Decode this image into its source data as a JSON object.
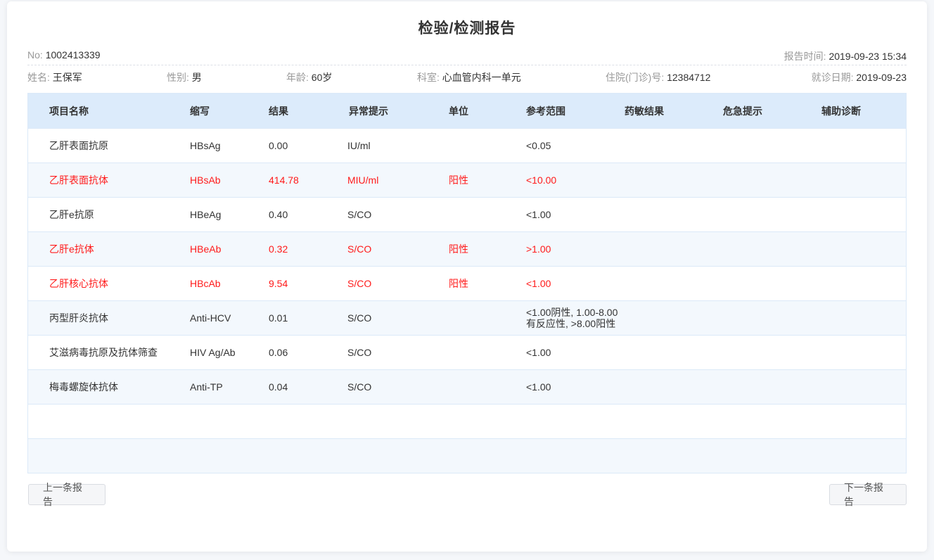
{
  "report": {
    "title": "检验/检测报告",
    "no_label": "No:",
    "no_value": "1002413339",
    "time_label": "报告时间:",
    "time_value": "2019-09-23 15:34"
  },
  "patient": {
    "name_label": "姓名:",
    "name_value": "王保军",
    "gender_label": "性别:",
    "gender_value": "男",
    "age_label": "年龄:",
    "age_value": "60岁",
    "dept_label": "科室:",
    "dept_value": "心血管内科一单元",
    "inpatient_label": "住院(门诊)号:",
    "inpatient_value": "12384712",
    "visit_label": "就诊日期:",
    "visit_value": "2019-09-23"
  },
  "table": {
    "headers": [
      "项目名称",
      "缩写",
      "结果",
      "异常提示",
      "单位",
      "参考范围",
      "药敏结果",
      "危急提示",
      "辅助诊断"
    ],
    "rows": [
      {
        "name": "乙肝表面抗原",
        "abbr": "HBsAg",
        "result": "0.00",
        "alert": "IU/ml",
        "unit": "",
        "ref": "<0.05",
        "abnormal": false
      },
      {
        "name": "乙肝表面抗体",
        "abbr": "HBsAb",
        "result": "414.78",
        "alert": "MIU/ml",
        "unit": "阳性",
        "ref": "<10.00",
        "abnormal": true
      },
      {
        "name": "乙肝e抗原",
        "abbr": "HBeAg",
        "result": "0.40",
        "alert": "S/CO",
        "unit": "",
        "ref": "<1.00",
        "abnormal": false
      },
      {
        "name": "乙肝e抗体",
        "abbr": "HBeAb",
        "result": "0.32",
        "alert": "S/CO",
        "unit": "阳性",
        "ref": ">1.00",
        "abnormal": true
      },
      {
        "name": "乙肝核心抗体",
        "abbr": "HBcAb",
        "result": "9.54",
        "alert": "S/CO",
        "unit": "阳性",
        "ref": "<1.00",
        "abnormal": true
      },
      {
        "name": "丙型肝炎抗体",
        "abbr": "Anti-HCV",
        "result": "0.01",
        "alert": "S/CO",
        "unit": "",
        "ref_line1": "<1.00阴性, 1.00-8.00",
        "ref_line2": "有反应性, >8.00阳性",
        "abnormal": false
      },
      {
        "name": "艾滋病毒抗原及抗体筛查",
        "abbr": "HIV Ag/Ab",
        "result": "0.06",
        "alert": "S/CO",
        "unit": "",
        "ref": "<1.00",
        "abnormal": false
      },
      {
        "name": "梅毒螺旋体抗体",
        "abbr": "Anti-TP",
        "result": "0.04",
        "alert": "S/CO",
        "unit": "",
        "ref": "<1.00",
        "abnormal": false
      }
    ]
  },
  "buttons": {
    "prev": "上一条报告",
    "next": "下一条报告"
  },
  "colors": {
    "abnormal_text": "#ff1a1a",
    "header_bg": "#dcebfb",
    "alt_row_bg": "#f3f8fd"
  }
}
